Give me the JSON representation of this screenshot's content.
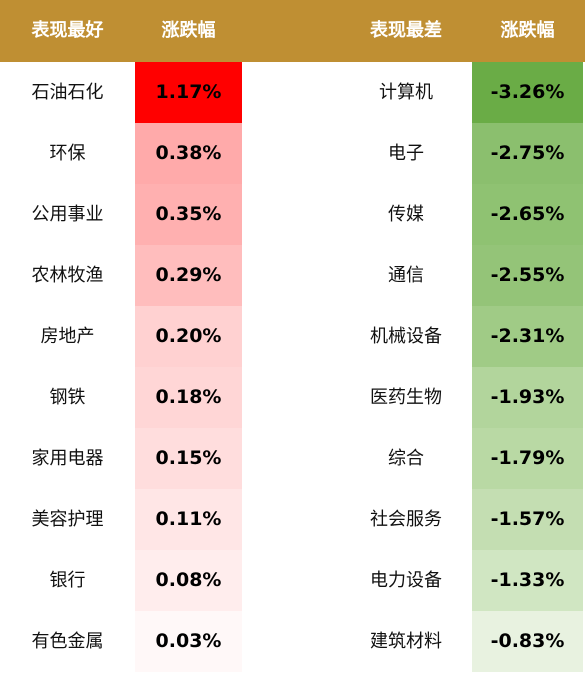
{
  "chart_data": {
    "type": "table",
    "columns": [
      "表现最好",
      "涨跌幅",
      "表现最差",
      "涨跌幅"
    ],
    "best": [
      {
        "name": "石油石化",
        "value": "1.17%",
        "color": "#ff0000"
      },
      {
        "name": "环保",
        "value": "0.38%",
        "color": "#ffaaaa"
      },
      {
        "name": "公用事业",
        "value": "0.35%",
        "color": "#ffb0b0"
      },
      {
        "name": "农林牧渔",
        "value": "0.29%",
        "color": "#ffbdbd"
      },
      {
        "name": "房地产",
        "value": "0.20%",
        "color": "#ffd1d1"
      },
      {
        "name": "钢铁",
        "value": "0.18%",
        "color": "#ffd6d6"
      },
      {
        "name": "家用电器",
        "value": "0.15%",
        "color": "#ffdddd"
      },
      {
        "name": "美容护理",
        "value": "0.11%",
        "color": "#ffe6e6"
      },
      {
        "name": "银行",
        "value": "0.08%",
        "color": "#ffeded"
      },
      {
        "name": "有色金属",
        "value": "0.03%",
        "color": "#fff8f8"
      }
    ],
    "worst": [
      {
        "name": "计算机",
        "value": "-3.26%",
        "color": "#6aac46"
      },
      {
        "name": "电子",
        "value": "-2.75%",
        "color": "#8bbf6e"
      },
      {
        "name": "传媒",
        "value": "-2.65%",
        "color": "#8fc272"
      },
      {
        "name": "通信",
        "value": "-2.55%",
        "color": "#94c478"
      },
      {
        "name": "机械设备",
        "value": "-2.31%",
        "color": "#a0cb86"
      },
      {
        "name": "医药生物",
        "value": "-1.93%",
        "color": "#b2d59c"
      },
      {
        "name": "综合",
        "value": "-1.79%",
        "color": "#b9d9a4"
      },
      {
        "name": "社会服务",
        "value": "-1.57%",
        "color": "#c4deb2"
      },
      {
        "name": "电力设备",
        "value": "-1.33%",
        "color": "#d0e6c2"
      },
      {
        "name": "建筑材料",
        "value": "-0.83%",
        "color": "#e8f2e0"
      }
    ]
  }
}
